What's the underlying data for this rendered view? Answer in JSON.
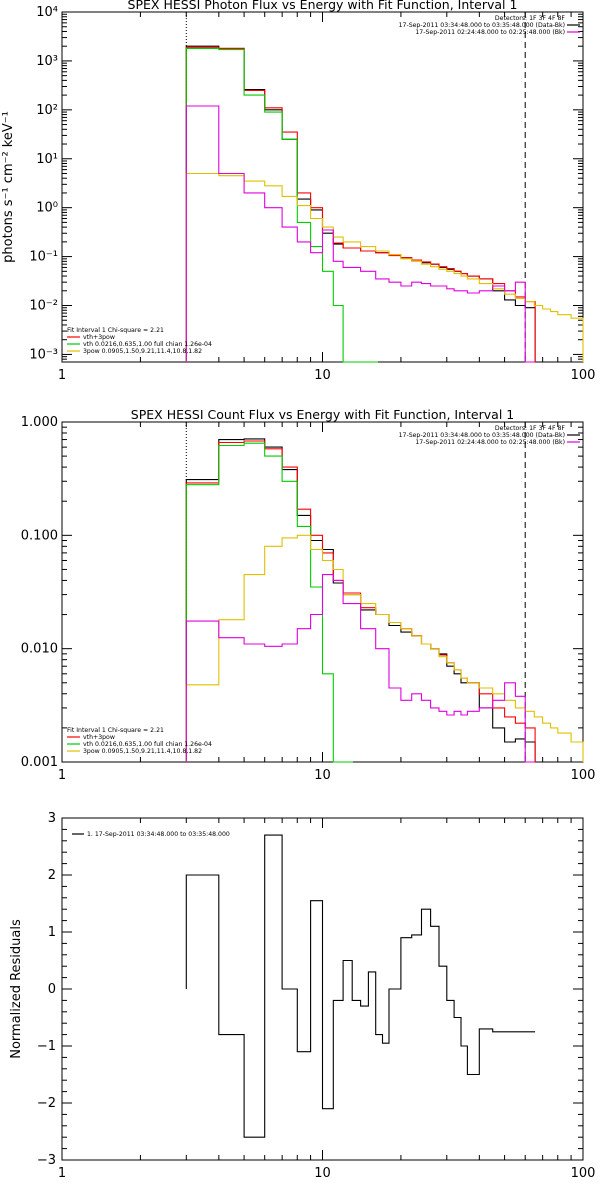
{
  "chart_data": [
    {
      "type": "line",
      "title": "SPEX HESSI Photon Flux vs Energy with Fit Function, Interval 1",
      "ylabel": "photons s⁻¹ cm⁻² keV⁻¹",
      "xlabel": "",
      "x_scale": "log",
      "y_scale": "log",
      "xlim": [
        1,
        100
      ],
      "ylim": [
        0.0007,
        10000
      ],
      "x_ticks": [
        "1",
        "10",
        "100"
      ],
      "y_ticks": [
        "10⁻³",
        "10⁻²",
        "10⁻¹",
        "10⁰",
        "10¹",
        "10²",
        "10³",
        "10⁴"
      ],
      "legend_top": [
        "Detectors: 1F 3F 4F 8F",
        "17-Sep-2011 03:34:48.000 to 03:35:48.000 (Data-Bk)",
        "17-Sep-2011 02:24:48.000 to 02:25:48.000 (Bk)"
      ],
      "legend_bottom": [
        "Fit Interval 1    Chi-square = 2.21",
        "vth+3pow",
        "vth 0.0216,0.635,1.00  full chian 1.26e-04",
        "3pow 0.0905,1.50,9.21,11.4,10.8,1.82"
      ],
      "markers": {
        "vline_dotted": 3,
        "vline_dashed": 60
      },
      "series": [
        {
          "name": "Data-Bk",
          "color": "#000000",
          "x": [
            3,
            4,
            5,
            6,
            7,
            8,
            9,
            10,
            11,
            12,
            14,
            16,
            18,
            20,
            22,
            24,
            26,
            28,
            30,
            32,
            34,
            36,
            40,
            45,
            50,
            55,
            60
          ],
          "y": [
            2000,
            1800,
            260,
            100,
            25,
            1.5,
            0.9,
            0.3,
            0.18,
            0.15,
            0.13,
            0.12,
            0.11,
            0.095,
            0.085,
            0.075,
            0.07,
            0.06,
            0.055,
            0.05,
            0.045,
            0.04,
            0.035,
            0.02,
            0.013,
            0.01,
            0.009
          ]
        },
        {
          "name": "vth+3pow",
          "color": "#ff0000",
          "x": [
            3,
            4,
            5,
            6,
            7,
            8,
            9,
            10,
            11,
            12,
            14,
            16,
            18,
            20,
            22,
            24,
            26,
            28,
            30,
            32,
            34,
            36,
            40,
            45,
            50,
            55,
            60
          ],
          "y": [
            1900,
            1800,
            250,
            110,
            35,
            2,
            1,
            0.35,
            0.19,
            0.15,
            0.13,
            0.12,
            0.105,
            0.095,
            0.085,
            0.078,
            0.07,
            0.062,
            0.057,
            0.05,
            0.045,
            0.04,
            0.035,
            0.028,
            0.02,
            0.015,
            0.012
          ]
        },
        {
          "name": "vth",
          "color": "#00cc00",
          "x": [
            3,
            4,
            5,
            6,
            7,
            8,
            9,
            10,
            11,
            12,
            14
          ],
          "y": [
            1800,
            1700,
            200,
            90,
            25,
            0.5,
            0.16,
            0.05,
            0.01,
            0.0006,
            0.0006
          ]
        },
        {
          "name": "3pow",
          "color": "#e0c000",
          "x": [
            3,
            4,
            5,
            6,
            7,
            8,
            9,
            10,
            11,
            12,
            14,
            16,
            18,
            20,
            22,
            24,
            26,
            28,
            30,
            32,
            34,
            36,
            40,
            45,
            50,
            55,
            60,
            65,
            70,
            75,
            80,
            90,
            100
          ],
          "y": [
            5,
            4.5,
            3.5,
            2.8,
            1.7,
            1.1,
            0.6,
            0.4,
            0.25,
            0.2,
            0.16,
            0.13,
            0.11,
            0.09,
            0.08,
            0.07,
            0.062,
            0.055,
            0.05,
            0.045,
            0.04,
            0.035,
            0.028,
            0.022,
            0.017,
            0.014,
            0.012,
            0.01,
            0.0085,
            0.0075,
            0.0065,
            0.0055,
            0.0045
          ]
        },
        {
          "name": "Bk",
          "color": "#e000e0",
          "x": [
            3,
            4,
            5,
            6,
            7,
            8,
            9,
            10,
            11,
            12,
            14,
            16,
            18,
            20,
            22,
            24,
            26,
            28,
            30,
            32,
            34,
            36,
            40,
            45,
            50,
            55,
            60
          ],
          "y": [
            120,
            5,
            2,
            1,
            0.4,
            0.2,
            0.12,
            0.35,
            0.08,
            0.06,
            0.05,
            0.035,
            0.03,
            0.025,
            0.03,
            0.028,
            0.025,
            0.025,
            0.022,
            0.02,
            0.02,
            0.018,
            0.02,
            0.025,
            0.02,
            0.03,
            0.0006
          ]
        }
      ]
    },
    {
      "type": "line",
      "title": "SPEX HESSI Count Flux vs Energy with Fit Function, Interval 1",
      "ylabel": "",
      "xlabel": "",
      "x_scale": "log",
      "y_scale": "log",
      "xlim": [
        1,
        100
      ],
      "ylim": [
        0.001,
        1
      ],
      "x_ticks": [
        "1",
        "10",
        "100"
      ],
      "y_ticks": [
        "0.001",
        "0.010",
        "0.100",
        "1.000"
      ],
      "legend_top": [
        "Detectors: 1F 3F 4F 8F",
        "17-Sep-2011 03:34:48.000 to 03:35:48.000 (Data-Bk)",
        "17-Sep-2011 02:24:48.000 to 02:25:48.000 (Bk)"
      ],
      "legend_bottom": [
        "Fit Interval 1    Chi-square = 2.21",
        "vth+3pow",
        "vth 0.0216,0.635,1.00  full chian 1.26e-04",
        "3pow 0.0905,1.50,9.21,11.4,10.8,1.82"
      ],
      "markers": {
        "vline_dotted": 3,
        "vline_dashed": 60
      },
      "series": [
        {
          "name": "Data-Bk",
          "color": "#000000",
          "x": [
            3,
            4,
            5,
            6,
            7,
            8,
            9,
            10,
            11,
            12,
            14,
            16,
            18,
            20,
            22,
            24,
            26,
            28,
            30,
            32,
            34,
            36,
            40,
            45,
            50,
            55,
            60
          ],
          "y": [
            0.31,
            0.7,
            0.71,
            0.6,
            0.38,
            0.15,
            0.09,
            0.075,
            0.038,
            0.03,
            0.022,
            0.02,
            0.016,
            0.014,
            0.013,
            0.011,
            0.01,
            0.009,
            0.007,
            0.006,
            0.005,
            0.005,
            0.003,
            0.002,
            0.0015,
            0.0016,
            0.0015
          ]
        },
        {
          "name": "vth+3pow",
          "color": "#ff0000",
          "x": [
            3,
            4,
            5,
            6,
            7,
            8,
            9,
            10,
            11,
            12,
            14,
            16,
            18,
            20,
            22,
            24,
            26,
            28,
            30,
            32,
            34,
            36,
            40,
            45,
            50,
            55,
            60
          ],
          "y": [
            0.29,
            0.66,
            0.68,
            0.58,
            0.4,
            0.17,
            0.1,
            0.07,
            0.04,
            0.031,
            0.023,
            0.02,
            0.017,
            0.015,
            0.013,
            0.011,
            0.01,
            0.0088,
            0.0075,
            0.0065,
            0.0055,
            0.005,
            0.004,
            0.003,
            0.0025,
            0.0022,
            0.002
          ]
        },
        {
          "name": "vth",
          "color": "#00cc00",
          "x": [
            3,
            4,
            5,
            6,
            7,
            8,
            9,
            10,
            11,
            12
          ],
          "y": [
            0.28,
            0.62,
            0.65,
            0.5,
            0.3,
            0.12,
            0.035,
            0.006,
            0.0009,
            0.0009
          ]
        },
        {
          "name": "3pow",
          "color": "#e0c000",
          "x": [
            3,
            4,
            5,
            6,
            7,
            8,
            9,
            10,
            11,
            12,
            14,
            16,
            18,
            20,
            22,
            24,
            26,
            28,
            30,
            32,
            34,
            36,
            40,
            45,
            50,
            55,
            60,
            65,
            70,
            75,
            80,
            90,
            100
          ],
          "y": [
            0.0048,
            0.018,
            0.045,
            0.08,
            0.095,
            0.1,
            0.075,
            0.06,
            0.05,
            0.03,
            0.025,
            0.02,
            0.017,
            0.015,
            0.013,
            0.011,
            0.01,
            0.0085,
            0.0075,
            0.0065,
            0.0055,
            0.005,
            0.0045,
            0.004,
            0.0035,
            0.003,
            0.0028,
            0.0025,
            0.0022,
            0.002,
            0.0018,
            0.0015,
            0.0012
          ]
        },
        {
          "name": "Bk",
          "color": "#e000e0",
          "x": [
            3,
            4,
            5,
            6,
            7,
            8,
            9,
            10,
            11,
            12,
            14,
            16,
            18,
            20,
            22,
            24,
            26,
            28,
            30,
            32,
            34,
            36,
            40,
            45,
            50,
            55,
            60
          ],
          "y": [
            0.0175,
            0.0125,
            0.011,
            0.0105,
            0.011,
            0.015,
            0.02,
            0.045,
            0.04,
            0.025,
            0.015,
            0.01,
            0.0045,
            0.0035,
            0.004,
            0.0035,
            0.003,
            0.0028,
            0.0026,
            0.0028,
            0.0026,
            0.0028,
            0.003,
            0.0035,
            0.005,
            0.0038,
            0.0009
          ]
        }
      ]
    },
    {
      "type": "line",
      "title": "",
      "ylabel": "Normalized Residuals",
      "xlabel": "",
      "x_scale": "log",
      "y_scale": "linear",
      "xlim": [
        1,
        100
      ],
      "ylim": [
        -3,
        3
      ],
      "x_ticks": [
        "1",
        "10",
        "100"
      ],
      "y_ticks": [
        "−3",
        "−2",
        "−1",
        "0",
        "1",
        "2",
        "3"
      ],
      "legend": [
        "1. 17-Sep-2011 03:34:48.000 to 03:35:48.000"
      ],
      "series": [
        {
          "name": "1. 17-Sep-2011 03:34:48.000 to 03:35:48.000",
          "color": "#000000",
          "x": [
            3,
            4,
            5,
            6,
            7,
            8,
            9,
            10,
            11,
            12,
            13,
            14,
            15,
            16,
            17,
            18,
            20,
            22,
            24,
            26,
            28,
            30,
            32,
            34,
            36,
            40,
            45,
            50,
            55,
            60
          ],
          "y": [
            2.0,
            -0.8,
            -2.6,
            2.7,
            0.0,
            -1.1,
            1.55,
            -2.1,
            -0.2,
            0.5,
            -0.2,
            -0.3,
            0.3,
            -0.8,
            -0.95,
            0.0,
            0.9,
            0.95,
            1.4,
            1.1,
            0.4,
            -0.2,
            -0.5,
            -1.0,
            -1.5,
            -0.7,
            -0.75,
            -0.75,
            -0.75,
            -0.75
          ]
        }
      ]
    }
  ]
}
